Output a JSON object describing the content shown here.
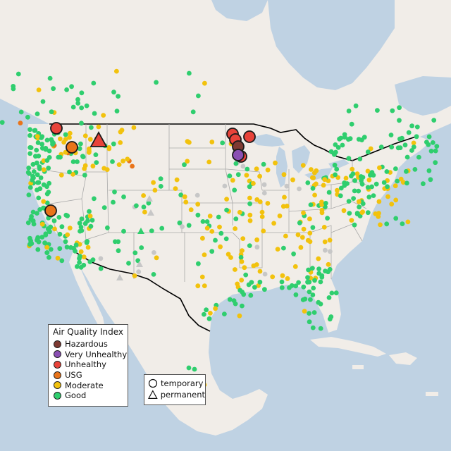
{
  "legend": {
    "title": "Air Quality Index",
    "categories": [
      {
        "label": "Hazardous",
        "color": "#7e3a32"
      },
      {
        "label": "Very Unhealthy",
        "color": "#8a4fb3"
      },
      {
        "label": "Unhealthy",
        "color": "#e8433a"
      },
      {
        "label": "USG",
        "color": "#e9741a"
      },
      {
        "label": "Moderate",
        "color": "#f2c20d"
      },
      {
        "label": "Good",
        "color": "#2fce6e"
      }
    ]
  },
  "shape_legend": {
    "temporary": "temporary",
    "permanent": "permanent"
  },
  "colors": {
    "land": "#f1ede8",
    "water": "#bfd2e3",
    "border": "#000000",
    "state_line": "#a9a9a9",
    "no_data": "#c7c7c7"
  }
}
